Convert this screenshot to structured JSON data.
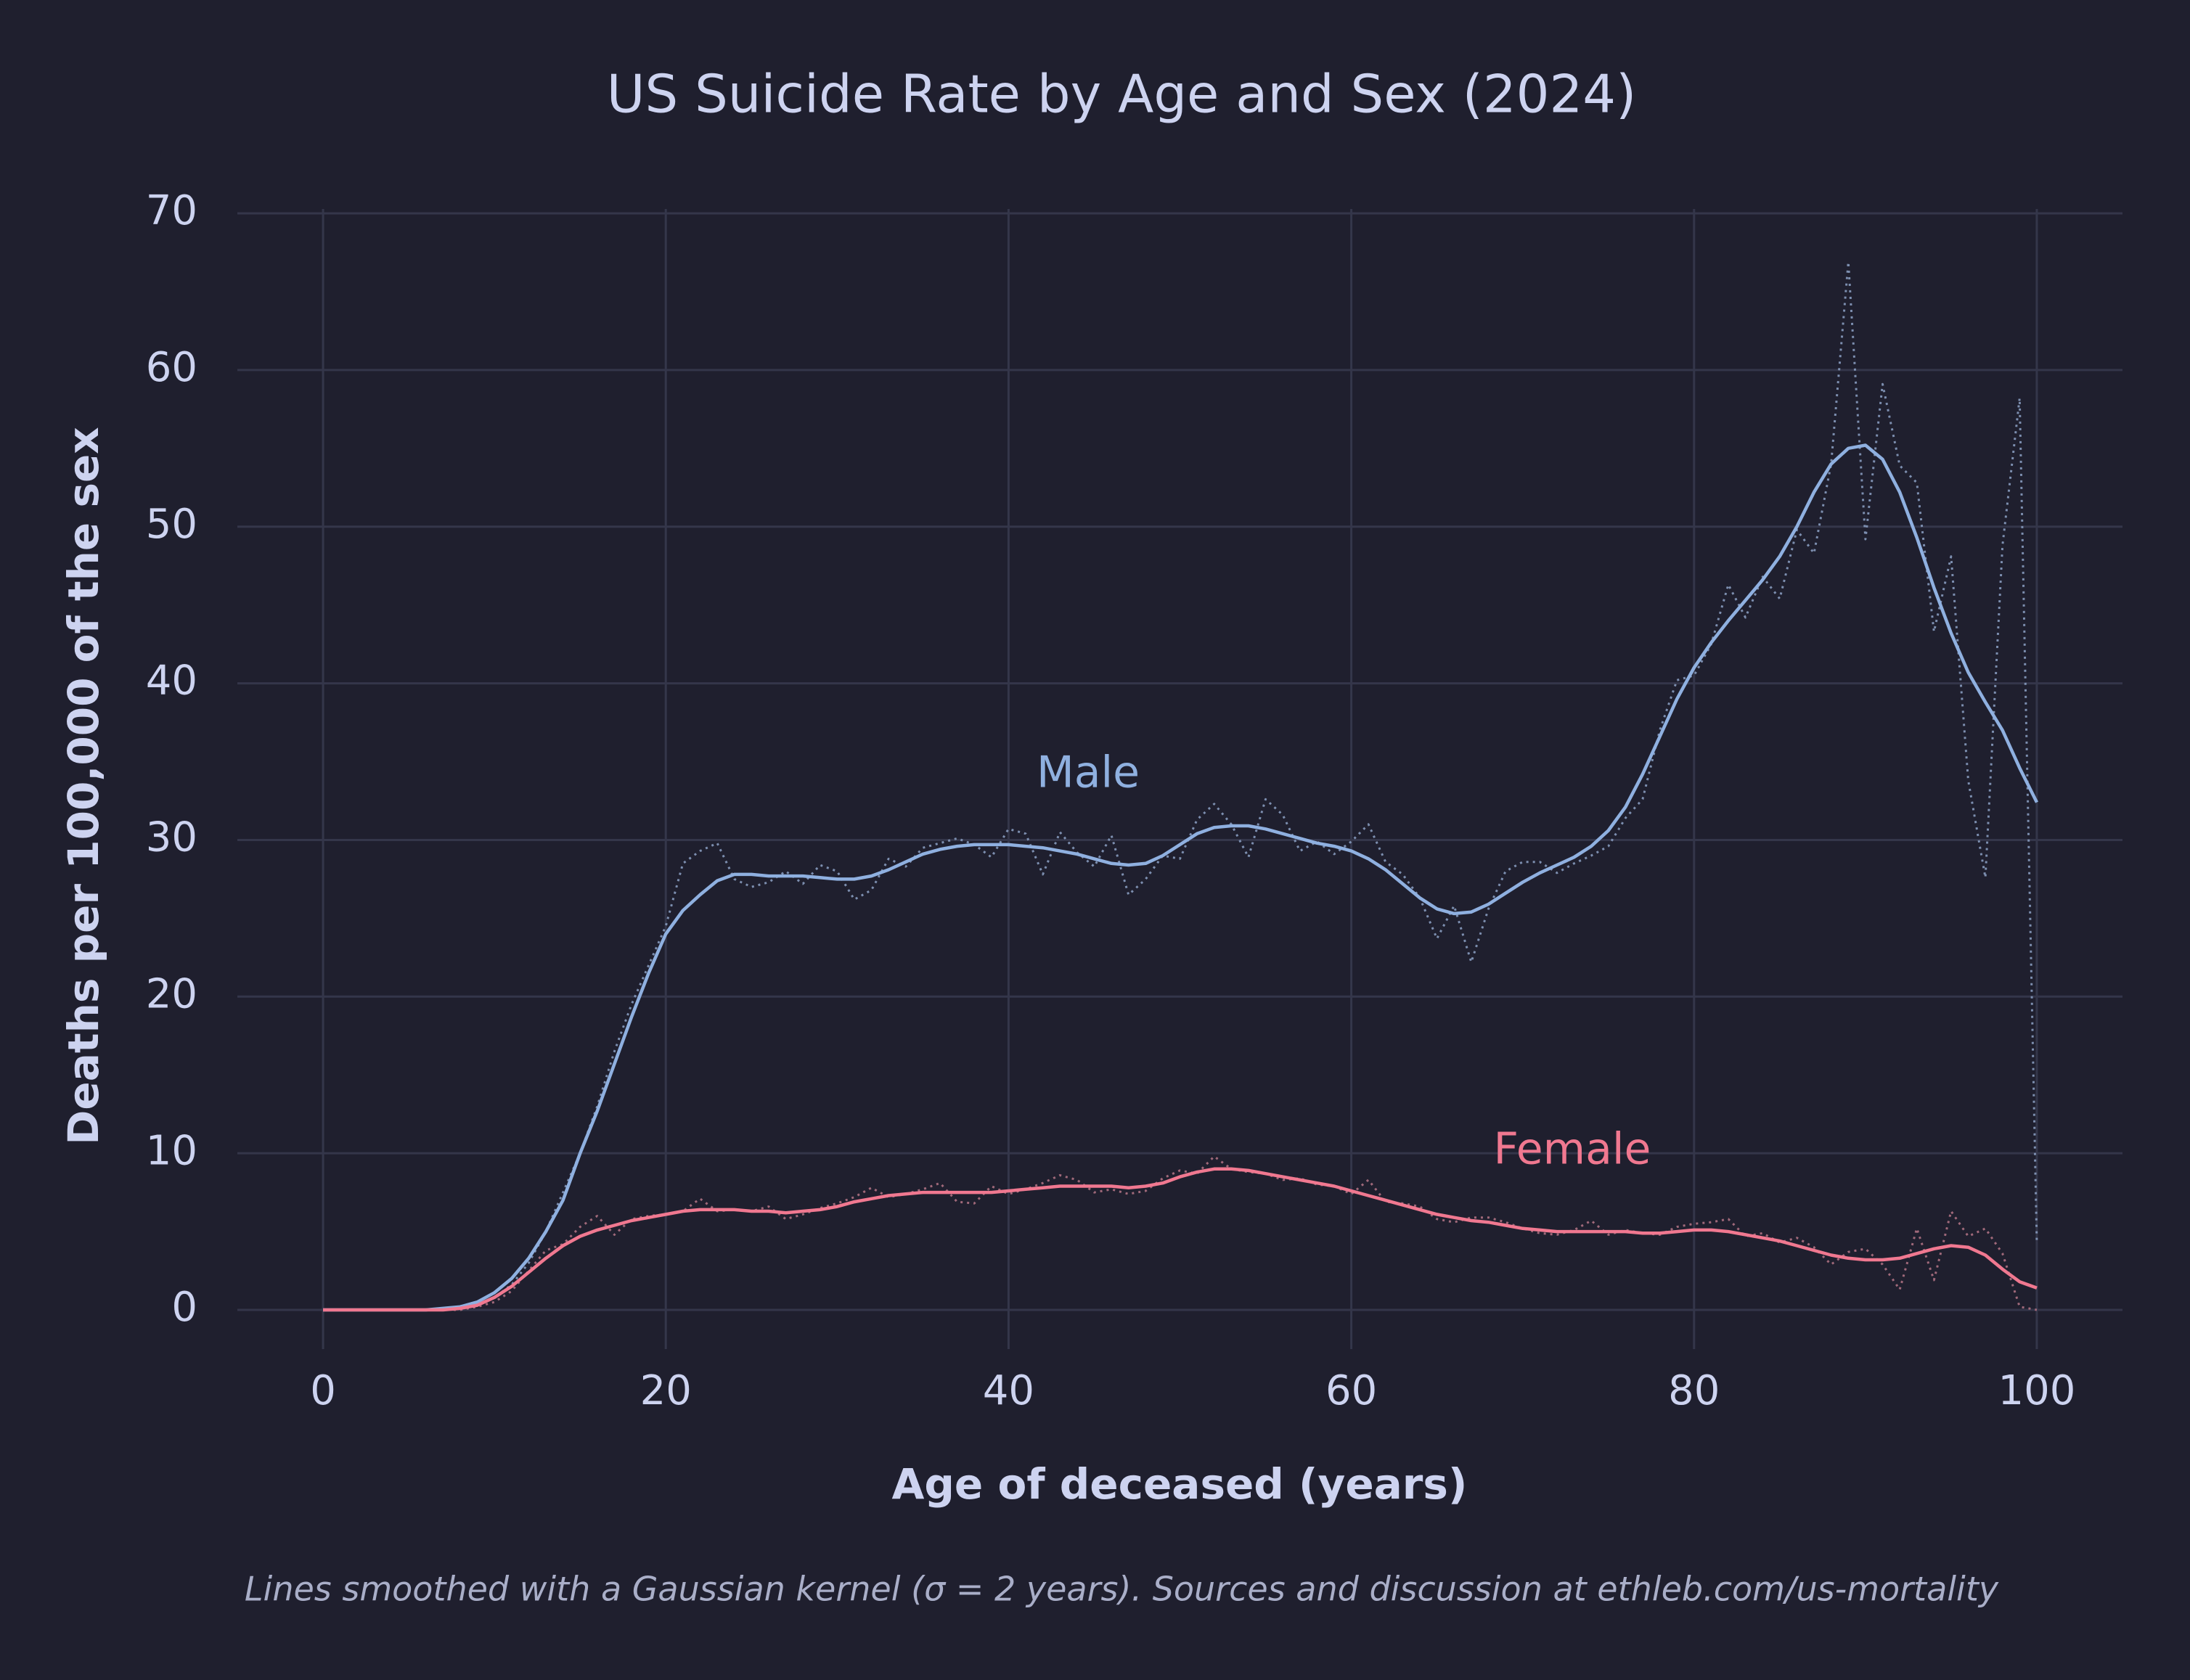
{
  "chart_data": {
    "type": "line",
    "title": "US Suicide Rate by Age and Sex (2024)",
    "x_label": "Age of deceased (years)",
    "y_label": "Deaths per 100,000 of the sex",
    "caption": "Lines smoothed with a Gaussian kernel (σ = 2 years).  Sources and discussion at ethleb.com/us-mortality",
    "x": [
      0,
      1,
      2,
      3,
      4,
      5,
      6,
      7,
      8,
      9,
      10,
      11,
      12,
      13,
      14,
      15,
      16,
      17,
      18,
      19,
      20,
      21,
      22,
      23,
      24,
      25,
      26,
      27,
      28,
      29,
      30,
      31,
      32,
      33,
      34,
      35,
      36,
      37,
      38,
      39,
      40,
      41,
      42,
      43,
      44,
      45,
      46,
      47,
      48,
      49,
      50,
      51,
      52,
      53,
      54,
      55,
      56,
      57,
      58,
      59,
      60,
      61,
      62,
      63,
      64,
      65,
      66,
      67,
      68,
      69,
      70,
      71,
      72,
      73,
      74,
      75,
      76,
      77,
      78,
      79,
      80,
      81,
      82,
      83,
      84,
      85,
      86,
      87,
      88,
      89,
      90,
      91,
      92,
      93,
      94,
      95,
      96,
      97,
      98,
      99,
      100
    ],
    "xlim": [
      -5,
      105
    ],
    "xticks": [
      0,
      20,
      40,
      60,
      80,
      100
    ],
    "ylim": [
      -2.5,
      70
    ],
    "yticks": [
      0,
      10,
      20,
      30,
      40,
      50,
      60,
      70
    ],
    "grid": true,
    "series": [
      {
        "color": "#7d8fb0",
        "style": "dotted",
        "values": [
          0,
          0,
          0,
          0,
          0,
          0,
          0,
          0,
          0,
          0.3,
          0.8,
          1.6,
          3,
          5,
          7.5,
          10,
          13,
          16.5,
          19.5,
          22,
          24.5,
          28.5,
          29.3,
          29.8,
          27.5,
          27,
          27.3,
          28,
          27.2,
          28.4,
          28,
          26.2,
          26.8,
          28.8,
          28.3,
          29.5,
          29.8,
          30.1,
          29.7,
          28.9,
          30.7,
          30.4,
          27.8,
          30.5,
          29.2,
          28.3,
          30.3,
          26.5,
          27.5,
          29,
          28.8,
          31.3,
          32.3,
          31,
          28.9,
          32.6,
          31.6,
          29.3,
          29.9,
          29.1,
          29.9,
          31,
          28.6,
          27.8,
          26.3,
          23.7,
          25.8,
          22.2,
          25.6,
          28,
          28.6,
          28.6,
          27.9,
          28.5,
          29,
          29.6,
          31.4,
          32.6,
          37,
          40.2,
          40.5,
          42.5,
          46.3,
          44.2,
          46.8,
          45.4,
          49.8,
          48.3,
          54,
          66.9,
          49.2,
          59.1,
          53.9,
          52.8,
          43.3,
          48.1,
          33.8,
          27.6,
          48.8,
          58.2,
          4.2
        ]
      },
      {
        "color": "#a0697a",
        "style": "dotted",
        "values": [
          0,
          0,
          0,
          0,
          0,
          0,
          0,
          0,
          0,
          0.2,
          0.5,
          1.2,
          2.5,
          3.8,
          4.2,
          5.3,
          6,
          4.8,
          5.8,
          6,
          6.1,
          6.3,
          7.1,
          6.3,
          6.4,
          6.3,
          6.6,
          5.8,
          6.1,
          6.5,
          6.8,
          7.2,
          7.8,
          7.2,
          7.4,
          7.7,
          8.1,
          6.9,
          6.8,
          7.9,
          7.4,
          7.7,
          8.1,
          8.6,
          8.3,
          7.5,
          7.7,
          7.4,
          7.6,
          8.4,
          8.9,
          8.7,
          9.8,
          9,
          8.8,
          8.7,
          8.3,
          8.4,
          8,
          7.9,
          7.4,
          8.3,
          6.9,
          6.8,
          6.6,
          5.8,
          5.6,
          5.9,
          5.9,
          5.6,
          5.2,
          4.9,
          4.8,
          5.1,
          5.7,
          4.8,
          5.1,
          4.9,
          4.8,
          5.3,
          5.5,
          5.6,
          5.8,
          4.7,
          4.9,
          4.3,
          4.6,
          4,
          2.9,
          3.7,
          3.9,
          2.9,
          1.3,
          5.2,
          1.9,
          6.3,
          4.7,
          5.2,
          3.6,
          0.2,
          0
        ]
      },
      {
        "name": "Male",
        "color": "#8fb0e0",
        "style": "solid",
        "values": [
          0,
          0,
          0,
          0,
          0,
          0,
          0,
          0.1,
          0.2,
          0.5,
          1.1,
          2,
          3.3,
          5,
          7,
          10,
          12.7,
          15.7,
          18.7,
          21.5,
          24,
          25.5,
          26.5,
          27.4,
          27.8,
          27.8,
          27.7,
          27.7,
          27.7,
          27.6,
          27.5,
          27.5,
          27.7,
          28.1,
          28.6,
          29.1,
          29.4,
          29.6,
          29.7,
          29.7,
          29.7,
          29.6,
          29.5,
          29.3,
          29.1,
          28.8,
          28.5,
          28.4,
          28.5,
          29,
          29.7,
          30.4,
          30.8,
          30.9,
          30.9,
          30.7,
          30.4,
          30.1,
          29.8,
          29.6,
          29.3,
          28.8,
          28.1,
          27.2,
          26.3,
          25.6,
          25.3,
          25.4,
          25.9,
          26.6,
          27.3,
          27.9,
          28.4,
          28.9,
          29.6,
          30.6,
          32.1,
          34.2,
          36.6,
          39,
          41,
          42.6,
          44,
          45.3,
          46.6,
          48.1,
          50,
          52.2,
          54,
          55,
          55.2,
          54.3,
          52.2,
          49.3,
          46.1,
          43.2,
          40.7,
          38.8,
          37,
          34.6,
          32.4
        ]
      },
      {
        "name": "Female",
        "color": "#f07890",
        "style": "solid",
        "values": [
          0,
          0,
          0,
          0,
          0,
          0,
          0,
          0,
          0.1,
          0.3,
          0.8,
          1.5,
          2.4,
          3.3,
          4.1,
          4.7,
          5.1,
          5.4,
          5.7,
          5.9,
          6.1,
          6.3,
          6.4,
          6.4,
          6.4,
          6.3,
          6.3,
          6.2,
          6.3,
          6.4,
          6.6,
          6.9,
          7.1,
          7.3,
          7.4,
          7.5,
          7.5,
          7.5,
          7.5,
          7.5,
          7.6,
          7.7,
          7.8,
          7.9,
          7.9,
          7.9,
          7.9,
          7.8,
          7.9,
          8.1,
          8.5,
          8.8,
          9,
          9,
          8.9,
          8.7,
          8.5,
          8.3,
          8.1,
          7.9,
          7.6,
          7.3,
          7,
          6.7,
          6.4,
          6.1,
          5.9,
          5.7,
          5.6,
          5.4,
          5.2,
          5.1,
          5,
          5,
          5,
          5,
          5,
          4.9,
          4.9,
          5,
          5.1,
          5.1,
          5,
          4.8,
          4.6,
          4.4,
          4.1,
          3.8,
          3.5,
          3.3,
          3.2,
          3.2,
          3.3,
          3.6,
          3.9,
          4.1,
          4,
          3.5,
          2.6,
          1.8,
          1.4
        ]
      }
    ]
  }
}
